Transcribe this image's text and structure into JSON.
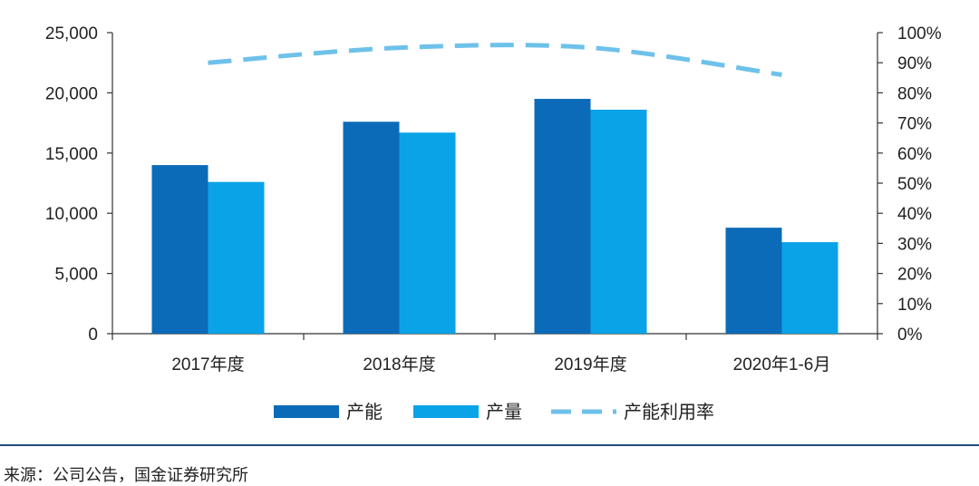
{
  "chart_data": {
    "type": "bar",
    "categories": [
      "2017年度",
      "2018年度",
      "2019年度",
      "2020年1-6月"
    ],
    "series": [
      {
        "name": "产能",
        "type": "bar",
        "axis": "left",
        "color": "#0b6bb8",
        "values": [
          14000,
          17600,
          19500,
          8800
        ]
      },
      {
        "name": "产量",
        "type": "bar",
        "axis": "left",
        "color": "#0ba3e8",
        "values": [
          12600,
          16700,
          18600,
          7600
        ]
      },
      {
        "name": "产能利用率",
        "type": "line",
        "style": "dashed",
        "axis": "right",
        "color": "#6ec1ea",
        "values": [
          0.9,
          0.95,
          0.95,
          0.86
        ]
      }
    ],
    "y_left": {
      "min": 0,
      "max": 25000,
      "ticks": [
        0,
        5000,
        10000,
        15000,
        20000,
        25000
      ],
      "tick_labels": [
        "0",
        "5,000",
        "10,000",
        "15,000",
        "20,000",
        "25,000"
      ]
    },
    "y_right": {
      "min": 0,
      "max": 1,
      "ticks": [
        0,
        0.1,
        0.2,
        0.3,
        0.4,
        0.5,
        0.6,
        0.7,
        0.8,
        0.9,
        1.0
      ],
      "tick_labels": [
        "0%",
        "10%",
        "20%",
        "30%",
        "40%",
        "50%",
        "60%",
        "70%",
        "80%",
        "90%",
        "100%"
      ]
    },
    "grid": false,
    "legend_position": "bottom"
  },
  "source": "来源：公司公告，国金证券研究所"
}
